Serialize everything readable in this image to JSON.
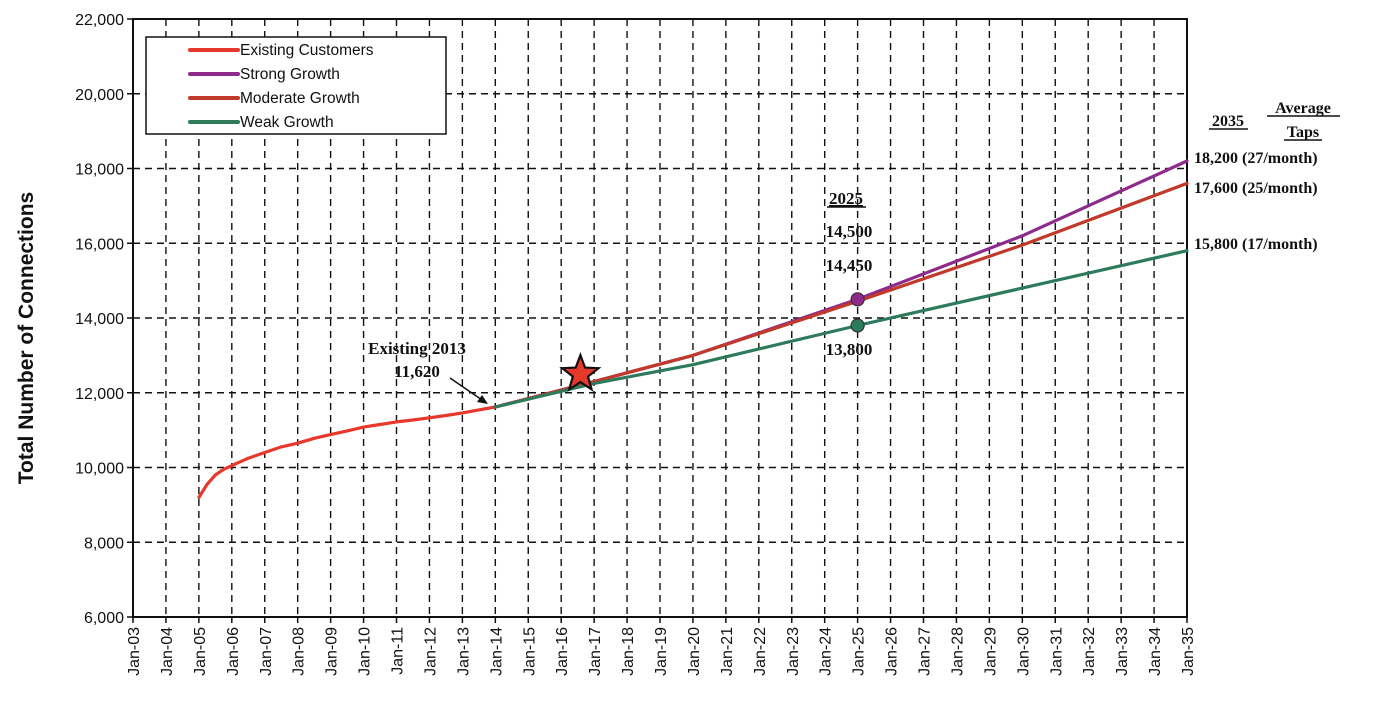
{
  "chart_data": {
    "type": "line",
    "ylabel": "Total Number of Connections",
    "ylim": [
      6000,
      22000
    ],
    "yticks": [
      6000,
      8000,
      10000,
      12000,
      14000,
      16000,
      18000,
      20000,
      22000
    ],
    "ytick_labels": [
      "6,000",
      "8,000",
      "10,000",
      "12,000",
      "14,000",
      "16,000",
      "18,000",
      "20,000",
      "22,000"
    ],
    "xticks": [
      "Jan-03",
      "Jan-04",
      "Jan-05",
      "Jan-06",
      "Jan-07",
      "Jan-08",
      "Jan-09",
      "Jan-10",
      "Jan-11",
      "Jan-12",
      "Jan-13",
      "Jan-14",
      "Jan-15",
      "Jan-16",
      "Jan-17",
      "Jan-18",
      "Jan-19",
      "Jan-20",
      "Jan-21",
      "Jan-22",
      "Jan-23",
      "Jan-24",
      "Jan-25",
      "Jan-26",
      "Jan-27",
      "Jan-28",
      "Jan-29",
      "Jan-30",
      "Jan-31",
      "Jan-32",
      "Jan-33",
      "Jan-34",
      "Jan-35"
    ],
    "xlim": [
      "Jan-03",
      "Jan-35"
    ],
    "grid": true,
    "legend_position": "top-left",
    "series": [
      {
        "name": "Existing Customers",
        "color": "#e8382b",
        "points": [
          [
            "Jan-05",
            9200
          ],
          [
            "Apr-05",
            9550
          ],
          [
            "Jul-05",
            9800
          ],
          [
            "Oct-05",
            9950
          ],
          [
            "Jan-06",
            10050
          ],
          [
            "Jul-06",
            10250
          ],
          [
            "Jan-07",
            10400
          ],
          [
            "Jul-07",
            10550
          ],
          [
            "Jan-08",
            10650
          ],
          [
            "Jul-08",
            10780
          ],
          [
            "Jan-09",
            10880
          ],
          [
            "Jul-09",
            10980
          ],
          [
            "Jan-10",
            11080
          ],
          [
            "Jul-10",
            11150
          ],
          [
            "Jan-11",
            11220
          ],
          [
            "Jul-11",
            11270
          ],
          [
            "Jan-12",
            11330
          ],
          [
            "Jul-12",
            11390
          ],
          [
            "Jan-13",
            11460
          ],
          [
            "Jul-13",
            11540
          ],
          [
            "Jan-14",
            11620
          ]
        ]
      },
      {
        "name": "Strong Growth",
        "color": "#8e2a8c",
        "points": [
          [
            "Jan-14",
            11620
          ],
          [
            "Jan-17",
            12300
          ],
          [
            "Jan-20",
            13000
          ],
          [
            "Jan-25",
            14500
          ],
          [
            "Jan-30",
            16200
          ],
          [
            "Jan-35",
            18200
          ]
        ]
      },
      {
        "name": "Moderate Growth",
        "color": "#c0392b",
        "points": [
          [
            "Jan-14",
            11620
          ],
          [
            "Jan-17",
            12300
          ],
          [
            "Jan-20",
            13000
          ],
          [
            "Jan-25",
            14450
          ],
          [
            "Jan-30",
            15950
          ],
          [
            "Jan-35",
            17600
          ]
        ]
      },
      {
        "name": "Weak Growth",
        "color": "#2e7a5c",
        "points": [
          [
            "Jan-14",
            11620
          ],
          [
            "Jan-17",
            12250
          ],
          [
            "Jan-20",
            12750
          ],
          [
            "Jan-25",
            13800
          ],
          [
            "Jan-30",
            14800
          ],
          [
            "Jan-35",
            15800
          ]
        ]
      }
    ],
    "markers": [
      {
        "type": "star",
        "x": "Aug-16",
        "y": 12500,
        "color": "#e8382b"
      },
      {
        "type": "dot",
        "x": "Jan-25",
        "y": 14500,
        "color": "#8e2a8c"
      },
      {
        "type": "dot",
        "x": "Jan-25",
        "y": 13800,
        "color": "#2e7a5c"
      }
    ],
    "annotations": {
      "existing_title": "Existing 2013",
      "existing_value": "11,620",
      "year_2025": "2025",
      "val_2025_strong": "14,500",
      "val_2025_moderate": "14,450",
      "val_2025_weak": "13,800",
      "col_2035": "2035",
      "col_avg_line1": "Average",
      "col_avg_line2": "Taps",
      "end_strong": "18,200  (27/month)",
      "end_moderate": "17,600  (25/month)",
      "end_weak": "15,800  (17/month)"
    }
  }
}
